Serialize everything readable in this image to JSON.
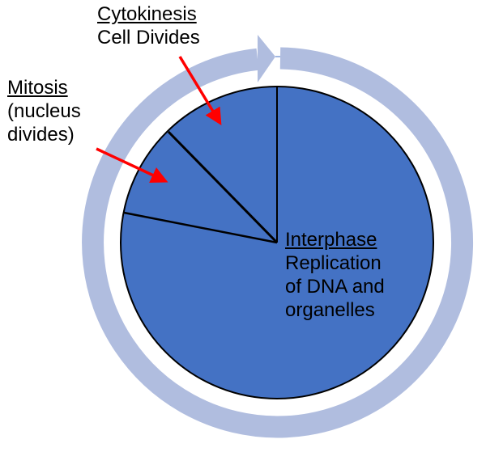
{
  "labels": {
    "cytokinesis": {
      "title": "Cytokinesis",
      "desc": "Cell Divides"
    },
    "mitosis": {
      "title": "Mitosis",
      "desc_line1": "(nucleus",
      "desc_line2": "divides)"
    },
    "interphase": {
      "title": "Interphase",
      "desc_line1": "Replication",
      "desc_line2": "of DNA and",
      "desc_line3": "organelles"
    }
  },
  "colors": {
    "pie_fill": "#4472C4",
    "cycle_arrow": "#B0BDDF",
    "pointer_arrows": "#FF0000",
    "outline": "#000000"
  }
}
